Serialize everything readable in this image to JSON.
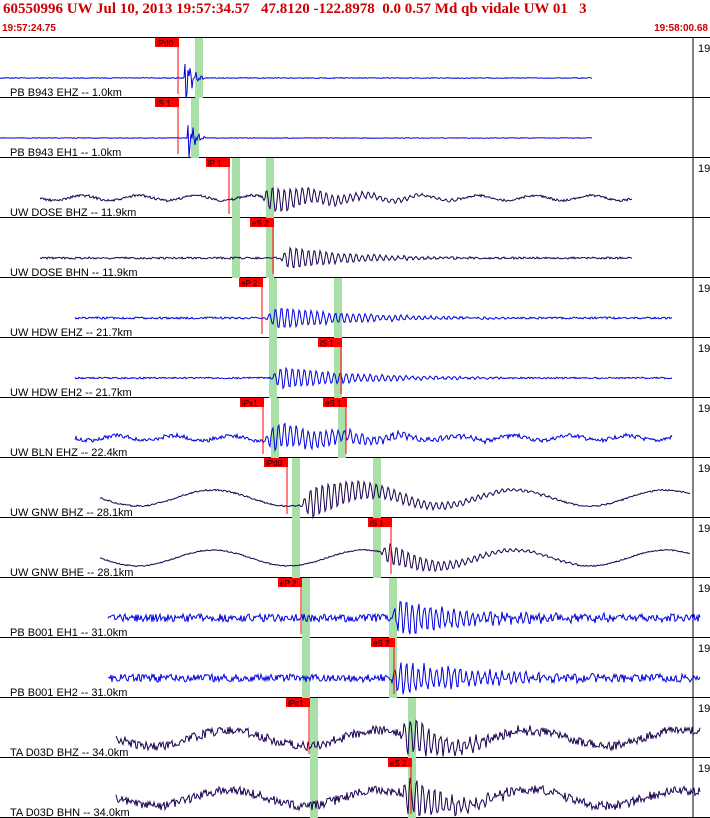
{
  "header": {
    "title": "60550996 UW Jul 10, 2013 19:57:34.57   47.8120 -122.8978  0.0 0.57 Md qb vidale UW 01   3",
    "time_start": "19:57:24.75",
    "time_end": "19:58:00.68"
  },
  "colors": {
    "pick_box": "#ff0000",
    "phase_band": "#a8e0a8",
    "trace_blue": "#0000e0",
    "trace_dark": "#1a0050",
    "header_text": "#cc0000"
  },
  "traces": [
    {
      "label": "PB B943 EHZ -- 1.0km",
      "pick": "iPd0",
      "edge": "19",
      "color": "blue"
    },
    {
      "label": "PB B943 EH1 -- 1.0km",
      "pick": "iS 1",
      "edge": "",
      "color": "blue"
    },
    {
      "label": "UW DOSE BHZ -- 11.9km",
      "pick": "iP 1",
      "edge": "19",
      "color": "dark"
    },
    {
      "label": "UW DOSE BHN -- 11.9km",
      "pick": "eS 2",
      "edge": "",
      "color": "dark"
    },
    {
      "label": "UW HDW EHZ -- 21.7km",
      "pick": "eP 2",
      "edge": "19",
      "color": "blue"
    },
    {
      "label": "UW HDW EH2 -- 21.7km",
      "pick": "iS 1",
      "edge": "19",
      "color": "blue"
    },
    {
      "label": "UW BLN EHZ -- 22.4km",
      "pick": "iPx1",
      "pick2": "eS 1",
      "edge": "19",
      "color": "blue"
    },
    {
      "label": "UW GNW BHZ -- 28.1km",
      "pick": "iPd0",
      "edge": "19",
      "color": "dark"
    },
    {
      "label": "UW GNW BHE -- 28.1km",
      "pick": "iS 1",
      "edge": "19",
      "color": "dark"
    },
    {
      "label": "PB B001 EH1 -- 31.0km",
      "pick": "eP 2",
      "edge": "19",
      "color": "blue"
    },
    {
      "label": "PB B001 EH2 -- 31.0km",
      "pick": "eS 2",
      "edge": "19",
      "color": "blue"
    },
    {
      "label": "TA D03D BHZ -- 34.0km",
      "pick": "iPc1",
      "edge": "19",
      "color": "dark"
    },
    {
      "label": "TA D03D BHN -- 34.0km",
      "pick": "eS 2",
      "edge": "19",
      "color": "dark"
    }
  ]
}
